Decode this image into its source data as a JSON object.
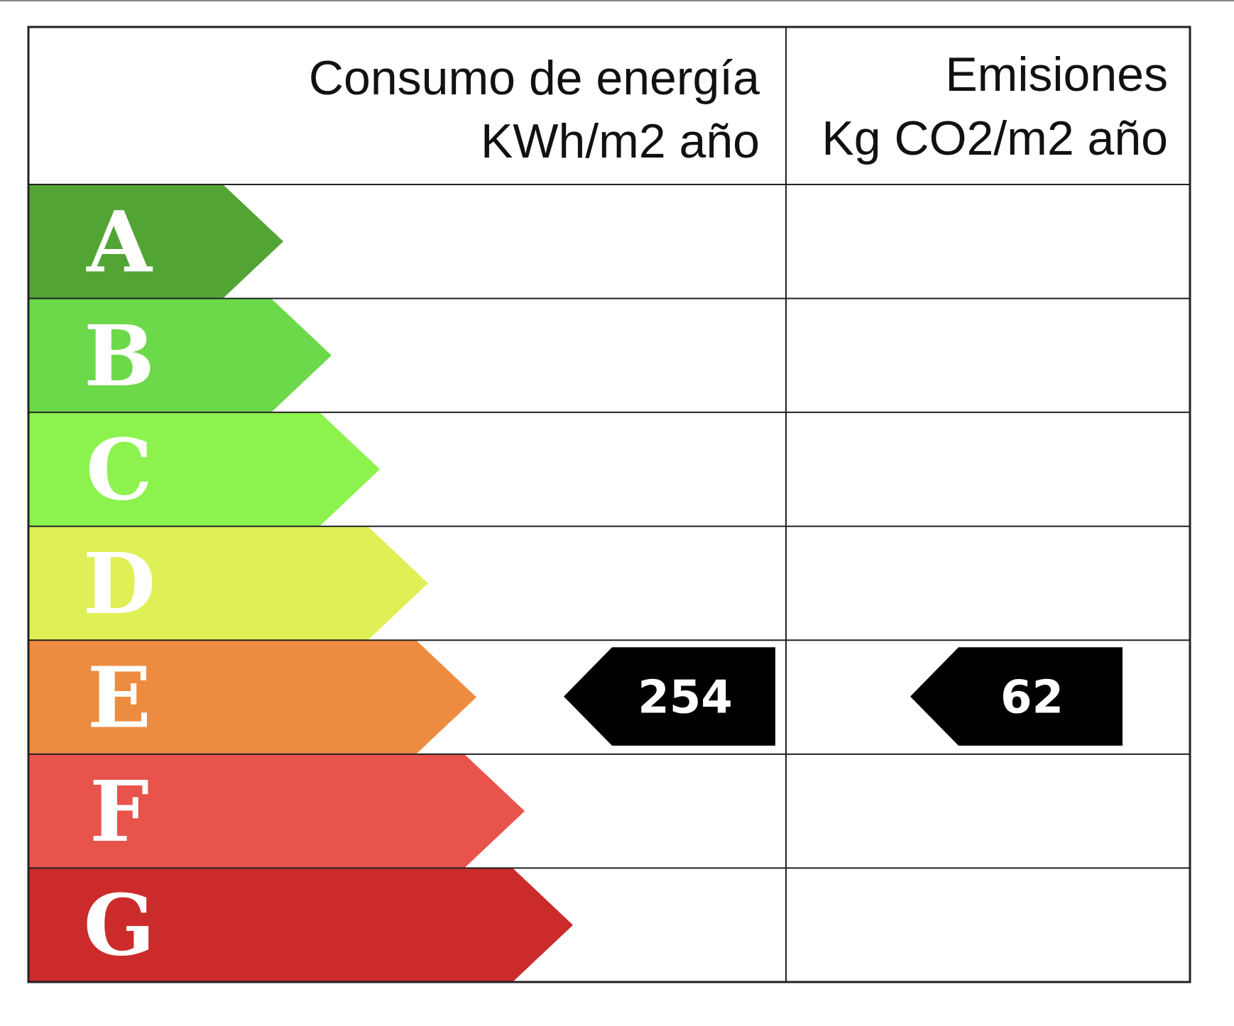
{
  "header": {
    "energy_title": "Consumo de energía",
    "energy_unit": "KWh/m2 año",
    "emissions_title": "Emisiones",
    "emissions_unit": "Kg CO2/m2 año"
  },
  "classes": [
    {
      "letter": "A",
      "color": "#52a535"
    },
    {
      "letter": "B",
      "color": "#6cd94a"
    },
    {
      "letter": "C",
      "color": "#8cf24e"
    },
    {
      "letter": "D",
      "color": "#def055"
    },
    {
      "letter": "E",
      "color": "#ed8c40"
    },
    {
      "letter": "F",
      "color": "#e8534b"
    },
    {
      "letter": "G",
      "color": "#cc2b2b"
    }
  ],
  "energy": {
    "value": 254,
    "rating": "E"
  },
  "emissions": {
    "value": 62,
    "rating": "E"
  }
}
